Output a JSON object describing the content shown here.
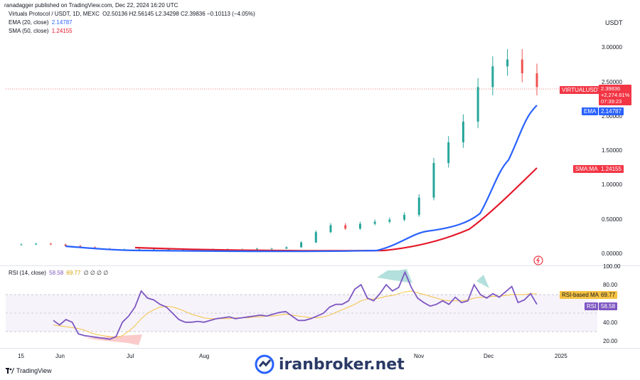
{
  "header": {
    "publisher": "ranadagger published on TradingView.com, Dec 22, 2024 16:20 UTC"
  },
  "legend": {
    "symbol": "Virtuals Protocol / USDT, 1D, MEXC",
    "ohlc": "O2.50136  H2.56145  L2.34298  C2.39836  −0.10113 (−4.05%)",
    "ema": "EMA (20, close)",
    "ema_val": "2.14787",
    "sma": "SMA (50, close)",
    "sma_val": "1.24155",
    "rsi": "RSI (14, close)",
    "rsi_val": "58.58",
    "rsi_ma_val": "69.77",
    "rsi_extra": "∅ ∅ ∅ ∅"
  },
  "price_axis": {
    "currency": "USDT",
    "ticks": [
      "3.00000",
      "2.50000",
      "2.00000",
      "1.50000",
      "1.00000",
      "0.50000",
      "0.00000"
    ]
  },
  "rsi_axis": {
    "ticks": [
      "100.00",
      "80.00",
      "40.00",
      "20.00"
    ]
  },
  "time_axis": {
    "ticks": [
      "15",
      "Jun",
      "Jul",
      "Aug",
      "Nov",
      "Dec",
      "2025"
    ]
  },
  "labels": {
    "price_name": "VIRTUALUSDT",
    "price_val": "2.39836",
    "price_pct": "+2,274.61%",
    "price_timer": "07:39:23",
    "ema_name": "EMA",
    "ema_val": "2.14787",
    "sma_name": "SMA:MA",
    "sma_val": "1.24155",
    "rsi_ma_name": "RSI-based MA",
    "rsi_ma_val": "69.77",
    "rsi_name": "RSI",
    "rsi_val": "58.58"
  },
  "footer": {
    "brand": "TradingView",
    "watermark": "iranbroker.net"
  },
  "colors": {
    "up": "#26a69a",
    "down": "#ef5350",
    "ema": "#2962ff",
    "sma": "#e5192b",
    "rsi": "#7e57c2",
    "rsi_ma": "#f5c242"
  },
  "chart_data": [
    {
      "type": "line",
      "title": "Virtuals Protocol / USDT, 1D, MEXC",
      "ylim": [
        -0.1,
        3.3
      ],
      "x_labels": [
        "15",
        "Jun",
        "Jul",
        "Aug",
        "Nov",
        "Dec",
        "2025"
      ],
      "series": [
        {
          "name": "VIRTUALUSDT",
          "values": [
            0.12,
            0.13,
            0.12,
            0.1,
            0.08,
            0.06,
            0.05,
            0.05,
            0.05,
            0.05,
            0.05,
            0.05,
            0.05,
            0.05,
            0.05,
            0.05,
            0.06,
            0.06,
            0.08,
            0.15,
            0.3,
            0.4,
            0.35,
            0.42,
            0.45,
            0.48,
            0.55,
            0.8,
            1.3,
            1.6,
            1.9,
            2.4,
            2.7,
            2.8,
            2.6,
            2.4
          ]
        },
        {
          "name": "EMA",
          "values": [
            0.1,
            0.09,
            0.07,
            0.05,
            0.05,
            0.05,
            0.05,
            0.05,
            0.05,
            0.05,
            0.05,
            0.05,
            0.05,
            0.05,
            0.05,
            0.05,
            0.05,
            0.06,
            0.08,
            0.15,
            0.22,
            0.28,
            0.32,
            0.36,
            0.4,
            0.45,
            0.55,
            0.8,
            1.1,
            1.4,
            1.7,
            1.95,
            2.05,
            2.1,
            2.15
          ]
        },
        {
          "name": "SMA",
          "values": [
            0.06,
            0.06,
            0.05,
            0.05,
            0.05,
            0.05,
            0.05,
            0.05,
            0.05,
            0.05,
            0.05,
            0.05,
            0.05,
            0.06,
            0.08,
            0.1,
            0.14,
            0.17,
            0.2,
            0.25,
            0.32,
            0.42,
            0.55,
            0.75,
            0.95,
            1.1,
            1.24
          ]
        }
      ]
    },
    {
      "type": "line",
      "title": "RSI (14, close)",
      "ylim": [
        10,
        100
      ],
      "series": [
        {
          "name": "RSI",
          "values": [
            40,
            35,
            41,
            38,
            25,
            23,
            22,
            21,
            20,
            19,
            22,
            38,
            45,
            55,
            73,
            65,
            63,
            58,
            55,
            48,
            41,
            38,
            38,
            39,
            38,
            40,
            42,
            43,
            44,
            42,
            43,
            44,
            45,
            46,
            45,
            47,
            49,
            50,
            45,
            40,
            40,
            42,
            45,
            48,
            55,
            58,
            58,
            62,
            75,
            80,
            65,
            62,
            70,
            80,
            73,
            77,
            94,
            77,
            65,
            60,
            56,
            58,
            62,
            58,
            66,
            60,
            62,
            80,
            69,
            65,
            70,
            66,
            72,
            78,
            60,
            63,
            70,
            58
          ]
        },
        {
          "name": "RSI-based MA",
          "values": [
            35,
            34,
            33,
            32,
            31,
            29,
            26,
            24,
            23,
            22,
            21,
            23,
            28,
            34,
            42,
            48,
            52,
            55,
            56,
            55,
            53,
            50,
            47,
            45,
            43,
            42,
            42,
            42,
            42,
            43,
            43,
            43,
            44,
            44,
            45,
            45,
            46,
            47,
            46,
            45,
            44,
            43,
            43,
            44,
            46,
            49,
            52,
            55,
            58,
            62,
            64,
            64,
            65,
            67,
            68,
            70,
            72,
            73,
            71,
            69,
            67,
            65,
            63,
            62,
            62,
            62,
            63,
            65,
            66,
            66,
            67,
            67,
            68,
            69,
            69,
            69,
            70,
            69.77
          ]
        }
      ]
    }
  ]
}
